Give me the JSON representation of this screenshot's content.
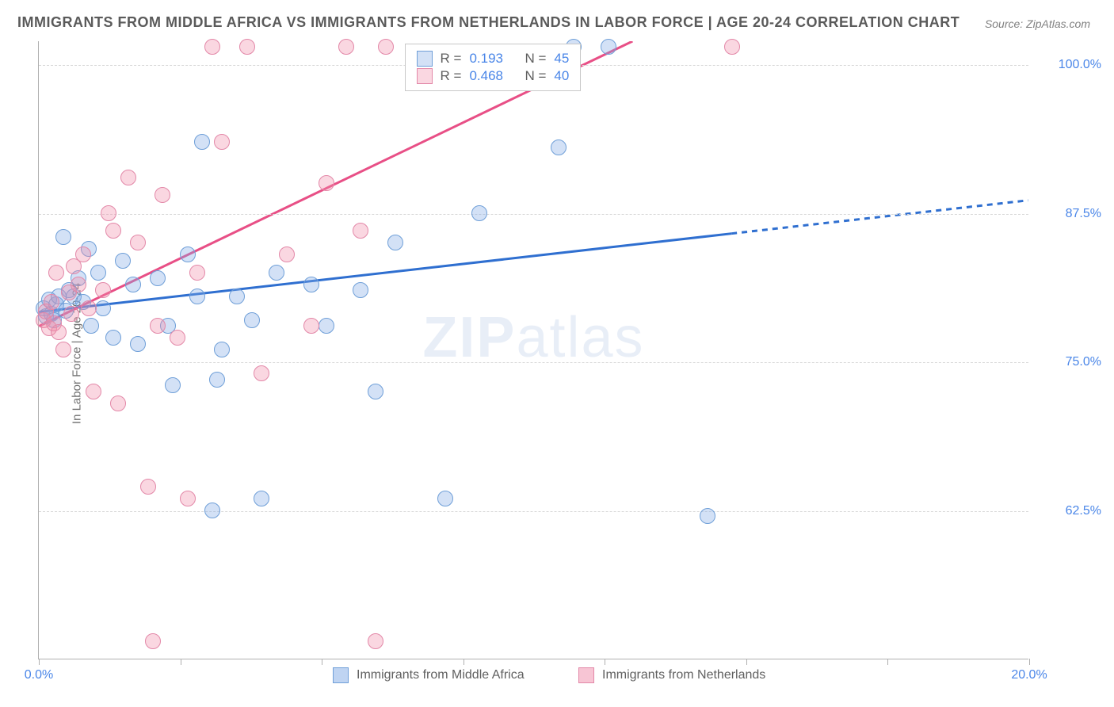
{
  "title": "IMMIGRANTS FROM MIDDLE AFRICA VS IMMIGRANTS FROM NETHERLANDS IN LABOR FORCE | AGE 20-24 CORRELATION CHART",
  "source": "Source: ZipAtlas.com",
  "y_axis_label": "In Labor Force | Age 20-24",
  "watermark_bold": "ZIP",
  "watermark_rest": "atlas",
  "chart": {
    "type": "scatter",
    "xlim": [
      0,
      20
    ],
    "ylim": [
      50,
      102
    ],
    "x_ticks": [
      0,
      2.857,
      5.714,
      8.571,
      11.43,
      14.29,
      17.14,
      20
    ],
    "x_tick_labels": {
      "0": "0.0%",
      "20": "20.0%"
    },
    "y_gridlines": [
      62.5,
      75.0,
      87.5,
      100.0
    ],
    "y_tick_labels": [
      "62.5%",
      "75.0%",
      "87.5%",
      "100.0%"
    ],
    "background_color": "#ffffff",
    "grid_color": "#d8d8d8",
    "axis_color": "#b0b0b0",
    "marker_radius": 10,
    "marker_stroke_width": 1.5,
    "series": [
      {
        "name": "Immigrants from Middle Africa",
        "fill_color": "rgba(128,170,230,0.35)",
        "stroke_color": "#6f9fd8",
        "trend_color": "#2f6fd0",
        "trend_width": 3,
        "R": "0.193",
        "N": "45",
        "trend_start": [
          0,
          79.2
        ],
        "trend_end_solid": [
          14.0,
          85.8
        ],
        "trend_end_dash": [
          20.0,
          88.6
        ],
        "points": [
          [
            0.1,
            79.5
          ],
          [
            0.15,
            78.8
          ],
          [
            0.2,
            80.2
          ],
          [
            0.25,
            79.0
          ],
          [
            0.3,
            78.5
          ],
          [
            0.35,
            79.8
          ],
          [
            0.4,
            80.5
          ],
          [
            0.5,
            85.5
          ],
          [
            0.55,
            79.3
          ],
          [
            0.6,
            81.0
          ],
          [
            0.7,
            80.5
          ],
          [
            0.8,
            82.0
          ],
          [
            0.9,
            80.0
          ],
          [
            1.0,
            84.5
          ],
          [
            1.05,
            78.0
          ],
          [
            1.2,
            82.5
          ],
          [
            1.3,
            79.5
          ],
          [
            1.5,
            77.0
          ],
          [
            1.7,
            83.5
          ],
          [
            1.9,
            81.5
          ],
          [
            2.0,
            76.5
          ],
          [
            2.4,
            82.0
          ],
          [
            2.6,
            78.0
          ],
          [
            2.7,
            73.0
          ],
          [
            3.0,
            84.0
          ],
          [
            3.2,
            80.5
          ],
          [
            3.3,
            93.5
          ],
          [
            3.5,
            62.5
          ],
          [
            3.6,
            73.5
          ],
          [
            3.7,
            76.0
          ],
          [
            4.0,
            80.5
          ],
          [
            4.3,
            78.5
          ],
          [
            4.5,
            63.5
          ],
          [
            4.8,
            82.5
          ],
          [
            5.5,
            81.5
          ],
          [
            5.8,
            78.0
          ],
          [
            6.5,
            81.0
          ],
          [
            6.8,
            72.5
          ],
          [
            7.2,
            85.0
          ],
          [
            8.2,
            63.5
          ],
          [
            8.9,
            87.5
          ],
          [
            10.5,
            93.0
          ],
          [
            10.8,
            101.5
          ],
          [
            13.5,
            62.0
          ],
          [
            11.5,
            101.5
          ]
        ]
      },
      {
        "name": "Immigrants from Netherlands",
        "fill_color": "rgba(240,140,170,0.35)",
        "stroke_color": "#e388a8",
        "trend_color": "#e84f86",
        "trend_width": 3,
        "R": "0.468",
        "N": "40",
        "trend_start": [
          0,
          78.0
        ],
        "trend_end_solid": [
          12.0,
          102.0
        ],
        "trend_end_dash": [
          12.0,
          102.0
        ],
        "points": [
          [
            0.1,
            78.5
          ],
          [
            0.15,
            79.2
          ],
          [
            0.2,
            77.8
          ],
          [
            0.25,
            80.0
          ],
          [
            0.3,
            78.2
          ],
          [
            0.35,
            82.5
          ],
          [
            0.4,
            77.5
          ],
          [
            0.5,
            76.0
          ],
          [
            0.6,
            80.8
          ],
          [
            0.65,
            79.0
          ],
          [
            0.8,
            81.5
          ],
          [
            0.9,
            84.0
          ],
          [
            1.0,
            79.5
          ],
          [
            1.1,
            72.5
          ],
          [
            1.3,
            81.0
          ],
          [
            1.5,
            86.0
          ],
          [
            1.6,
            71.5
          ],
          [
            1.8,
            90.5
          ],
          [
            2.0,
            85.0
          ],
          [
            2.2,
            64.5
          ],
          [
            2.3,
            51.5
          ],
          [
            2.5,
            89.0
          ],
          [
            2.8,
            77.0
          ],
          [
            3.0,
            63.5
          ],
          [
            3.2,
            82.5
          ],
          [
            3.5,
            101.5
          ],
          [
            3.7,
            93.5
          ],
          [
            4.2,
            101.5
          ],
          [
            4.5,
            74.0
          ],
          [
            5.0,
            84.0
          ],
          [
            5.5,
            78.0
          ],
          [
            5.8,
            90.0
          ],
          [
            6.2,
            101.5
          ],
          [
            6.5,
            86.0
          ],
          [
            6.8,
            51.5
          ],
          [
            7.0,
            101.5
          ],
          [
            14.0,
            101.5
          ],
          [
            2.4,
            78.0
          ],
          [
            1.4,
            87.5
          ],
          [
            0.7,
            83.0
          ]
        ]
      }
    ]
  },
  "legend_top": {
    "R_label": "R =",
    "N_label": "N ="
  },
  "legend_bottom": [
    {
      "label": "Immigrants from Middle Africa",
      "fill": "rgba(128,170,230,0.5)",
      "stroke": "#6f9fd8"
    },
    {
      "label": "Immigrants from Netherlands",
      "fill": "rgba(240,140,170,0.5)",
      "stroke": "#e388a8"
    }
  ]
}
